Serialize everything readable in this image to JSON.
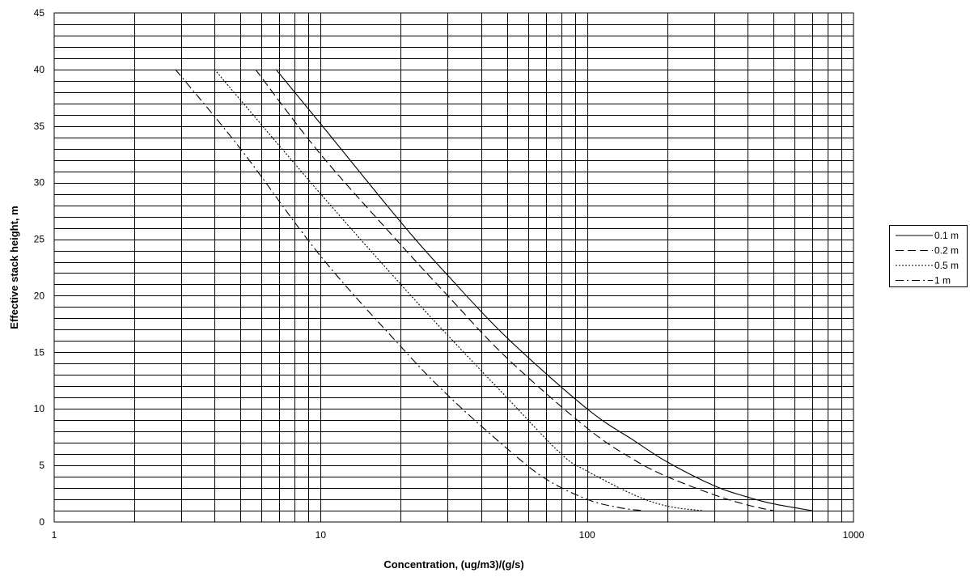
{
  "chart_data": {
    "type": "line",
    "title": "",
    "xlabel": "Concentration, (ug/m3)/(g/s)",
    "ylabel": "Effective stack height, m",
    "x_scale": "log",
    "xlim": [
      1,
      1000
    ],
    "ylim": [
      0,
      45
    ],
    "x_ticks": [
      "1",
      "10",
      "100",
      "1000"
    ],
    "y_ticks": [
      "0",
      "5",
      "10",
      "15",
      "20",
      "25",
      "30",
      "35",
      "40",
      "45"
    ],
    "grid": true,
    "legend_position": "right",
    "series": [
      {
        "name": "0.1 m",
        "style": "solid",
        "points": [
          [
            6.8,
            40
          ],
          [
            10,
            35.2
          ],
          [
            20,
            26.5
          ],
          [
            30,
            21.8
          ],
          [
            50,
            16.3
          ],
          [
            100,
            10
          ],
          [
            150,
            7.2
          ],
          [
            200,
            5.3
          ],
          [
            300,
            3.2
          ],
          [
            400,
            2.2
          ],
          [
            500,
            1.6
          ],
          [
            700,
            1
          ]
        ]
      },
      {
        "name": "0.2 m",
        "style": "dashed",
        "points": [
          [
            5.7,
            40
          ],
          [
            10,
            32.5
          ],
          [
            20,
            24.5
          ],
          [
            30,
            20
          ],
          [
            50,
            14.5
          ],
          [
            100,
            8.3
          ],
          [
            150,
            5.5
          ],
          [
            200,
            4
          ],
          [
            300,
            2.4
          ],
          [
            400,
            1.5
          ],
          [
            500,
            1
          ]
        ]
      },
      {
        "name": "0.5 m",
        "style": "dotted",
        "points": [
          [
            4,
            40
          ],
          [
            10,
            29
          ],
          [
            20,
            21
          ],
          [
            30,
            16.5
          ],
          [
            50,
            11
          ],
          [
            80,
            6
          ],
          [
            100,
            4.5
          ],
          [
            150,
            2.4
          ],
          [
            200,
            1.4
          ],
          [
            270,
            1
          ]
        ]
      },
      {
        "name": "1 m",
        "style": "dashdot",
        "points": [
          [
            2.85,
            40
          ],
          [
            5,
            33
          ],
          [
            10,
            23.5
          ],
          [
            20,
            15.5
          ],
          [
            30,
            11.2
          ],
          [
            50,
            6.5
          ],
          [
            70,
            3.8
          ],
          [
            100,
            2
          ],
          [
            130,
            1.3
          ],
          [
            160,
            1
          ]
        ]
      }
    ]
  },
  "colors": {
    "line": "#000000",
    "grid": "#000000",
    "background": "#ffffff"
  }
}
